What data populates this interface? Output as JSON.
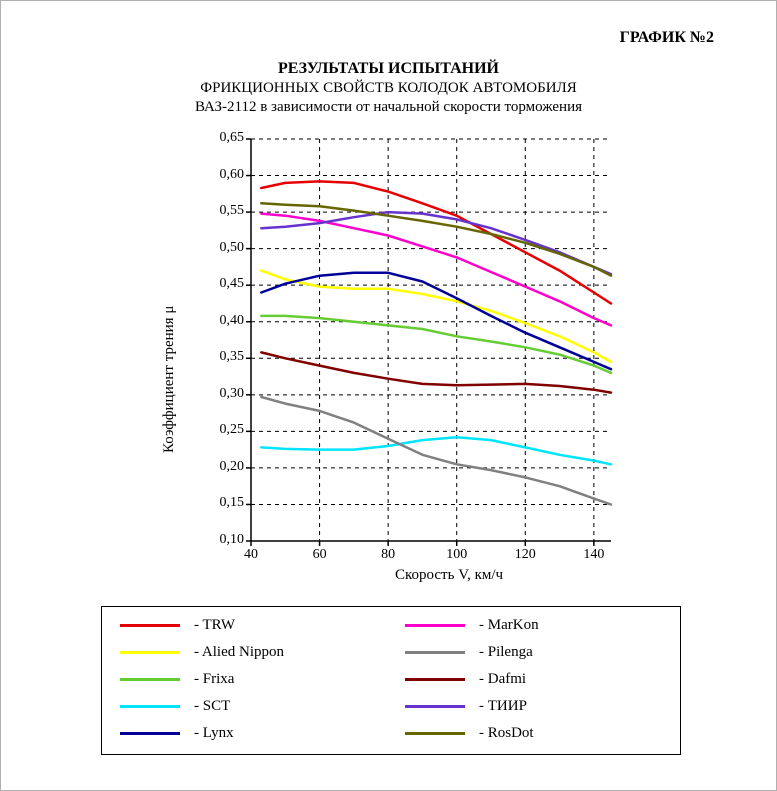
{
  "header_right": "ГРАФИК №2",
  "title_main": "РЕЗУЛЬТАТЫ ИСПЫТАНИЙ",
  "title_sub": "ФРИКЦИОННЫХ СВОЙСТВ КОЛОДОК АВТОМОБИЛЯ",
  "title_sub2": "ВАЗ-2112 в зависимости от начальной скорости торможения",
  "x_axis_label": "Скорость V, км/ч",
  "y_axis_label": "Коэффициент трения  μ",
  "chart": {
    "type": "line",
    "background_color": "#ffffff",
    "axis_color": "#000000",
    "grid_color": "#000000",
    "grid_dash": "4,4",
    "line_width": 2.5,
    "xlim": [
      40,
      145
    ],
    "ylim": [
      0.1,
      0.65
    ],
    "xticks": [
      40,
      60,
      80,
      100,
      120,
      140
    ],
    "yticks": [
      0.1,
      0.15,
      0.2,
      0.25,
      0.3,
      0.35,
      0.4,
      0.45,
      0.5,
      0.55,
      0.6,
      0.65
    ],
    "ytick_labels": [
      "0,10",
      "0,15",
      "0,20",
      "0,25",
      "0,30",
      "0,35",
      "0,40",
      "0,45",
      "0,50",
      "0,55",
      "0,60",
      "0,65"
    ],
    "series": [
      {
        "name": "TRW",
        "color": "#e60000",
        "x": [
          43,
          50,
          60,
          70,
          80,
          90,
          100,
          110,
          120,
          130,
          140,
          145
        ],
        "y": [
          0.583,
          0.59,
          0.592,
          0.59,
          0.578,
          0.562,
          0.545,
          0.52,
          0.495,
          0.47,
          0.44,
          0.425
        ]
      },
      {
        "name": "Alied Nippon",
        "color": "#ffff00",
        "x": [
          43,
          50,
          60,
          70,
          80,
          90,
          100,
          110,
          120,
          130,
          140,
          145
        ],
        "y": [
          0.47,
          0.458,
          0.448,
          0.445,
          0.445,
          0.438,
          0.428,
          0.415,
          0.398,
          0.38,
          0.358,
          0.345
        ]
      },
      {
        "name": "Frixa",
        "color": "#66cc33",
        "x": [
          43,
          50,
          60,
          70,
          80,
          90,
          100,
          110,
          120,
          130,
          140,
          145
        ],
        "y": [
          0.408,
          0.408,
          0.405,
          0.4,
          0.395,
          0.39,
          0.38,
          0.373,
          0.365,
          0.355,
          0.34,
          0.33
        ]
      },
      {
        "name": "SCT",
        "color": "#00e5ff",
        "x": [
          43,
          50,
          60,
          70,
          80,
          90,
          100,
          110,
          120,
          130,
          140,
          145
        ],
        "y": [
          0.228,
          0.226,
          0.225,
          0.225,
          0.23,
          0.238,
          0.242,
          0.238,
          0.228,
          0.218,
          0.21,
          0.205
        ]
      },
      {
        "name": "Lynx",
        "color": "#000099",
        "x": [
          43,
          50,
          60,
          70,
          80,
          90,
          100,
          110,
          120,
          130,
          140,
          145
        ],
        "y": [
          0.44,
          0.452,
          0.463,
          0.467,
          0.467,
          0.455,
          0.432,
          0.408,
          0.385,
          0.365,
          0.345,
          0.335
        ]
      },
      {
        "name": "MarKon",
        "color": "#ff00cc",
        "x": [
          43,
          50,
          60,
          70,
          80,
          90,
          100,
          110,
          120,
          130,
          140,
          145
        ],
        "y": [
          0.548,
          0.545,
          0.538,
          0.528,
          0.518,
          0.503,
          0.488,
          0.468,
          0.448,
          0.428,
          0.405,
          0.395
        ]
      },
      {
        "name": "Pilenga",
        "color": "#808080",
        "x": [
          43,
          50,
          60,
          70,
          80,
          90,
          100,
          110,
          120,
          130,
          140,
          145
        ],
        "y": [
          0.297,
          0.288,
          0.278,
          0.262,
          0.24,
          0.218,
          0.205,
          0.197,
          0.187,
          0.175,
          0.158,
          0.15
        ]
      },
      {
        "name": "Dafmi",
        "color": "#800000",
        "x": [
          43,
          50,
          60,
          70,
          80,
          90,
          100,
          110,
          120,
          130,
          140,
          145
        ],
        "y": [
          0.358,
          0.35,
          0.34,
          0.33,
          0.322,
          0.315,
          0.313,
          0.314,
          0.315,
          0.312,
          0.307,
          0.303
        ]
      },
      {
        "name": "ТИИР",
        "color": "#6633cc",
        "x": [
          43,
          50,
          60,
          70,
          80,
          90,
          100,
          110,
          120,
          130,
          140,
          145
        ],
        "y": [
          0.528,
          0.53,
          0.535,
          0.543,
          0.55,
          0.548,
          0.54,
          0.528,
          0.512,
          0.495,
          0.475,
          0.465
        ]
      },
      {
        "name": "RosDot",
        "color": "#666600",
        "x": [
          43,
          50,
          60,
          70,
          80,
          90,
          100,
          110,
          120,
          130,
          140,
          145
        ],
        "y": [
          0.562,
          0.56,
          0.558,
          0.552,
          0.545,
          0.538,
          0.53,
          0.52,
          0.508,
          0.493,
          0.475,
          0.463
        ]
      }
    ],
    "legend_order": [
      "TRW",
      "Alied Nippon",
      "Frixa",
      "SCT",
      "Lynx",
      "MarKon",
      "Pilenga",
      "Dafmi",
      "ТИИР",
      "RosDot"
    ],
    "legend_cols": 2,
    "title_fontsize": 16,
    "label_fontsize": 15,
    "tick_fontsize": 14
  }
}
